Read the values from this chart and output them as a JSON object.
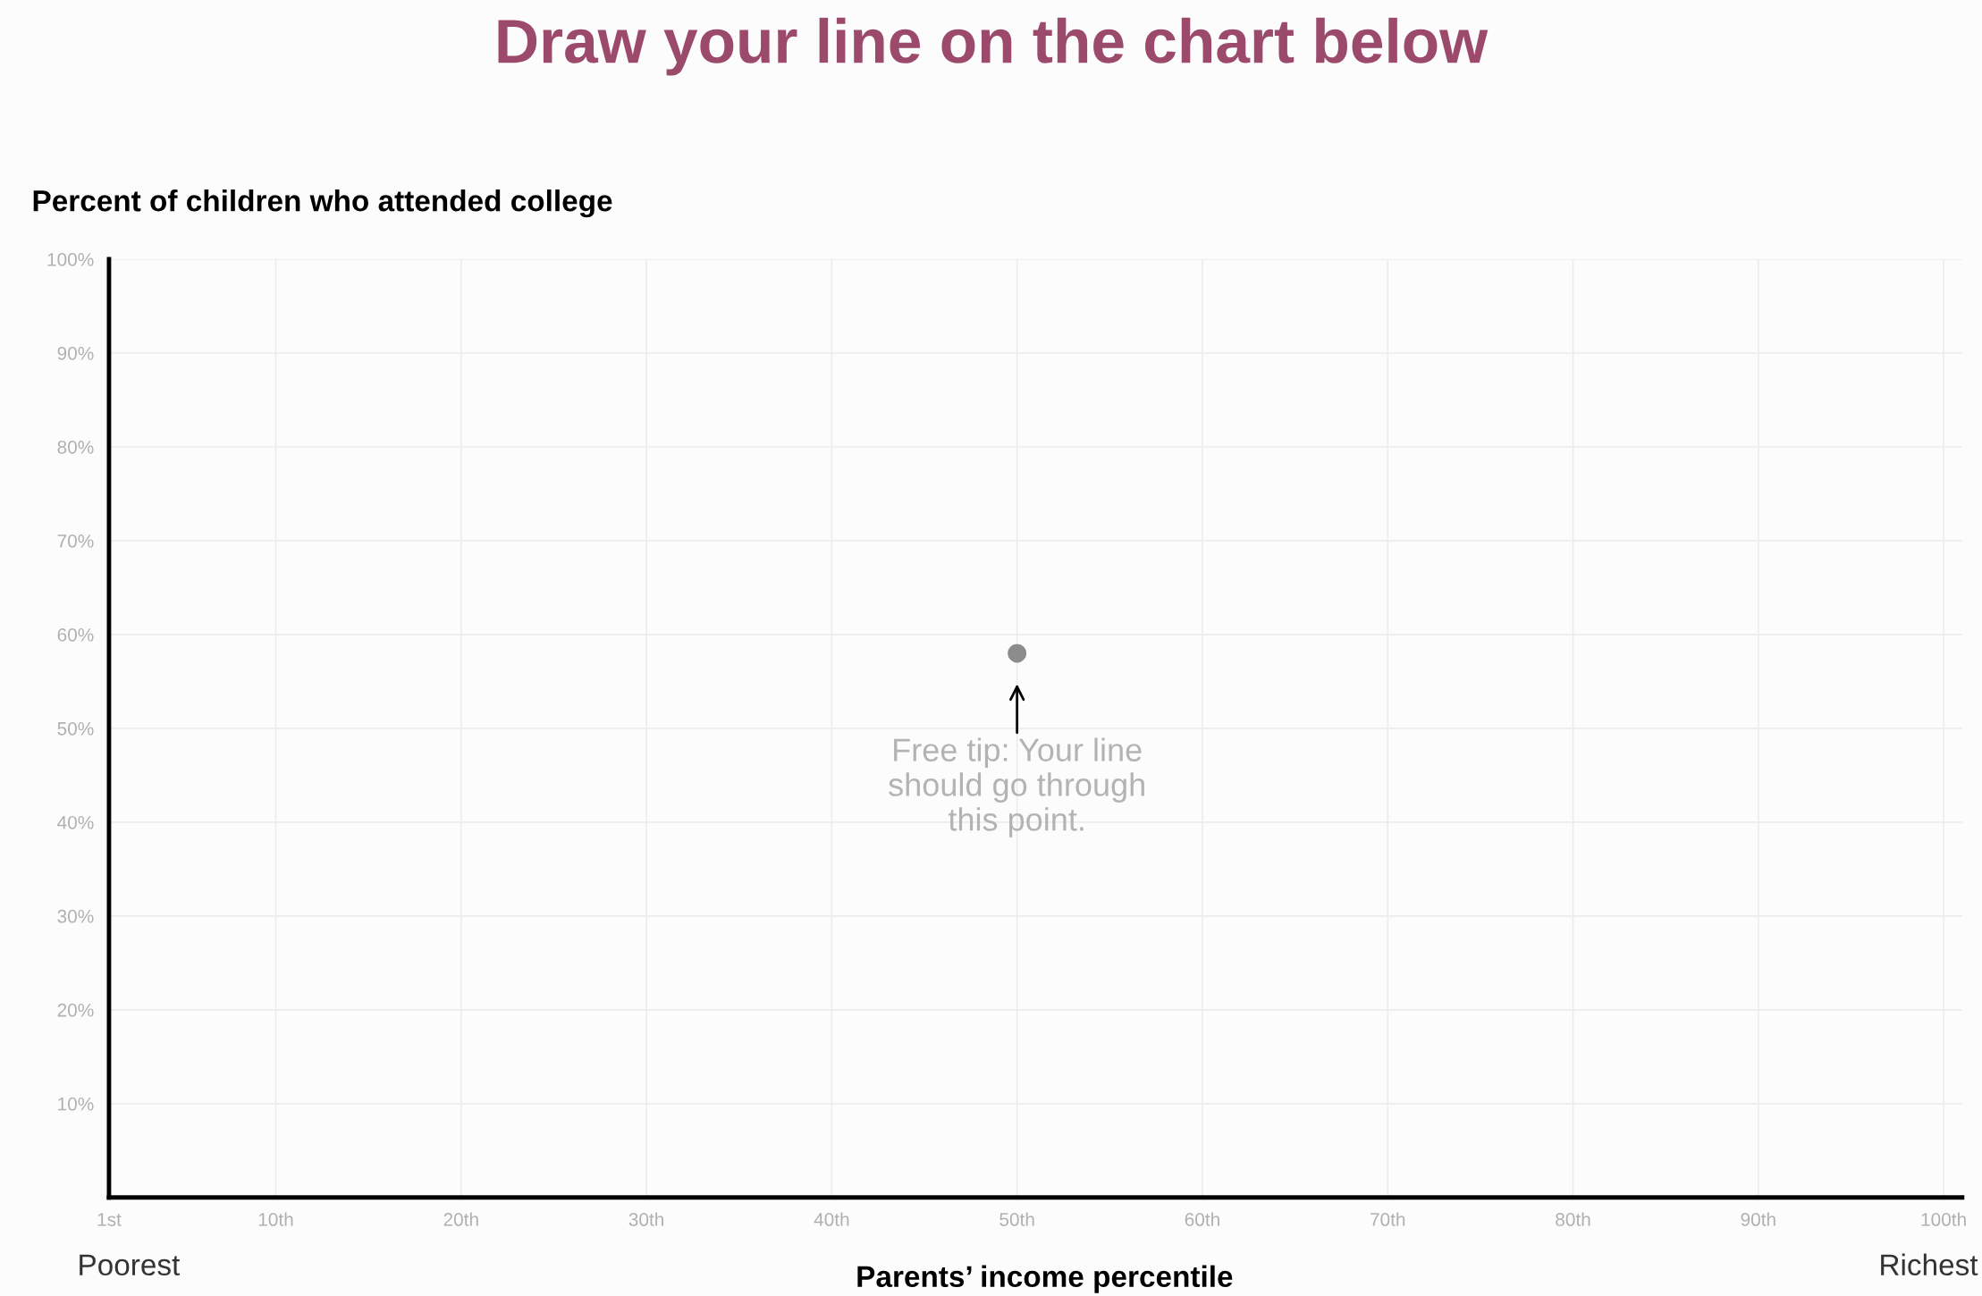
{
  "chart_data": {
    "type": "scatter",
    "title": "Draw your line on the chart below",
    "ylabel": "Percent of children who attended college",
    "xlabel": "Parents’ income percentile",
    "x": [
      50
    ],
    "values": [
      58
    ],
    "color": "#8c8c8c",
    "marker": "circle",
    "xlim": [
      1,
      101
    ],
    "xticks": [
      {
        "value": 1,
        "label": "1st"
      },
      {
        "value": 10,
        "label": "10th"
      },
      {
        "value": 20,
        "label": "20th"
      },
      {
        "value": 30,
        "label": "30th"
      },
      {
        "value": 40,
        "label": "40th"
      },
      {
        "value": 50,
        "label": "50th"
      },
      {
        "value": 60,
        "label": "60th"
      },
      {
        "value": 70,
        "label": "70th"
      },
      {
        "value": 80,
        "label": "80th"
      },
      {
        "value": 90,
        "label": "90th"
      },
      {
        "value": 100,
        "label": "100th"
      }
    ],
    "ylim": [
      0,
      100
    ],
    "yticks": [
      {
        "value": 10,
        "label": "10%"
      },
      {
        "value": 20,
        "label": "20%"
      },
      {
        "value": 30,
        "label": "30%"
      },
      {
        "value": 40,
        "label": "40%"
      },
      {
        "value": 50,
        "label": "50%"
      },
      {
        "value": 60,
        "label": "60%"
      },
      {
        "value": 70,
        "label": "70%"
      },
      {
        "value": 80,
        "label": "80%"
      },
      {
        "value": 90,
        "label": "90%"
      },
      {
        "value": 100,
        "label": "100%"
      }
    ],
    "grid": true,
    "annotations": [
      {
        "text": "Free tip: Your line\nshould go through\nthis point.",
        "x": 50,
        "y": 58
      },
      "Poorest",
      "Richest"
    ]
  }
}
